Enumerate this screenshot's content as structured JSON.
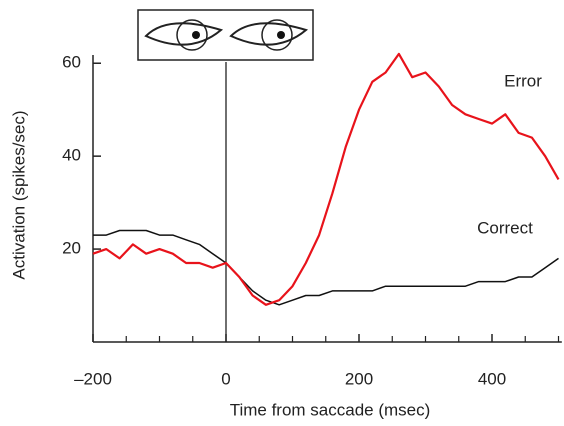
{
  "chart_data": {
    "type": "line",
    "x_label": "Time from saccade (msec)",
    "y_label": "Activation (spikes/sec)",
    "x": [
      -200,
      -180,
      -160,
      -140,
      -120,
      -100,
      -80,
      -60,
      -40,
      -20,
      0,
      20,
      40,
      60,
      80,
      100,
      120,
      140,
      160,
      180,
      200,
      220,
      240,
      260,
      280,
      300,
      320,
      340,
      360,
      380,
      400,
      420,
      440,
      460,
      480,
      500
    ],
    "series": [
      {
        "name": "Error",
        "color": "#e8131b",
        "values": [
          19,
          20,
          18,
          21,
          19,
          20,
          19,
          17,
          17,
          16,
          17,
          14,
          10,
          8,
          9,
          12,
          17,
          23,
          32,
          42,
          50,
          56,
          58,
          62,
          57,
          58,
          55,
          51,
          49,
          48,
          47,
          49,
          45,
          44,
          40,
          35
        ]
      },
      {
        "name": "Correct",
        "color": "#111111",
        "values": [
          23,
          23,
          24,
          24,
          24,
          23,
          23,
          22,
          21,
          19,
          17,
          14,
          11,
          9,
          8,
          9,
          10,
          10,
          11,
          11,
          11,
          11,
          12,
          12,
          12,
          12,
          12,
          12,
          12,
          13,
          13,
          13,
          14,
          14,
          16,
          18
        ]
      }
    ],
    "xlim": [
      -200,
      505
    ],
    "ylim": [
      0,
      65
    ],
    "xticks": [
      {
        "value": -200,
        "label": "–200"
      },
      0,
      200,
      400
    ],
    "xminorticks": [
      -150,
      -100,
      -50,
      50,
      100,
      150,
      250,
      300,
      350,
      450,
      500
    ],
    "yticks": [
      20,
      40,
      60
    ],
    "vline": 0
  }
}
